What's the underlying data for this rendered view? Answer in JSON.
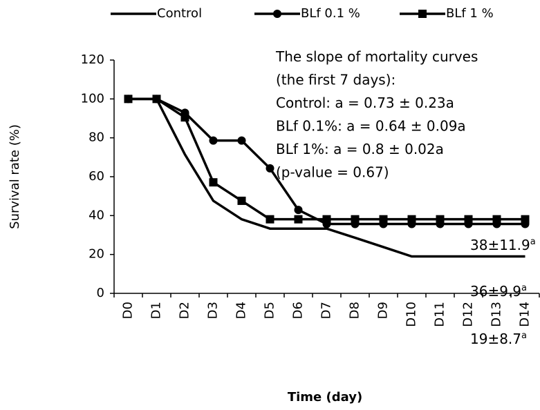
{
  "chart_data": {
    "type": "line",
    "y_label": "Survival rate (%)",
    "x_label": "Time (day)",
    "categories": [
      "D0",
      "D1",
      "D2",
      "D3",
      "D4",
      "D5",
      "D6",
      "D7",
      "D8",
      "D9",
      "D10",
      "D11",
      "D12",
      "D13",
      "D14"
    ],
    "series": [
      {
        "name": "Control",
        "color": "#000000",
        "marker": "none",
        "values": [
          100,
          100,
          71.4,
          47.6,
          38.1,
          33.3,
          33.3,
          33.3,
          28.6,
          23.8,
          19,
          19,
          19,
          19,
          19
        ]
      },
      {
        "name": "BLf 0.1 %",
        "color": "#000000",
        "marker": "circle",
        "values": [
          100,
          100,
          92.9,
          78.6,
          78.6,
          64.3,
          42.9,
          35.7,
          35.7,
          35.7,
          35.7,
          35.7,
          35.7,
          35.7,
          35.7
        ]
      },
      {
        "name": "BLf 1 %",
        "color": "#000000",
        "marker": "square",
        "values": [
          100,
          100,
          90.5,
          57.1,
          47.6,
          38.1,
          38.1,
          38.1,
          38.1,
          38.1,
          38.1,
          38.1,
          38.1,
          38.1,
          38.1
        ]
      }
    ],
    "ylim": [
      0,
      120
    ],
    "yticks": [
      0,
      20,
      40,
      60,
      80,
      100,
      120
    ],
    "grid": false,
    "annotation_lines": [
      "The slope of mortality curves",
      "(the first 7 days):",
      "Control: a = 0.73 ± 0.23a",
      "BLf 0.1%: a = 0.64 ±  0.09a",
      "BLf 1%: a = 0.8 ± 0.02a",
      "(p-value = 0.67)"
    ],
    "end_labels": [
      {
        "text": "38±11.9",
        "sup": "a"
      },
      {
        "text": "36±9.9",
        "sup": "a"
      },
      {
        "text": "19±8.7",
        "sup": "a"
      }
    ]
  }
}
